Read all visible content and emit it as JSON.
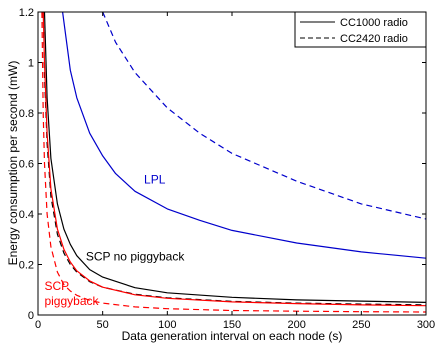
{
  "chart_data": {
    "type": "line",
    "title": "",
    "xlabel": "Data generation interval on each node (s)",
    "ylabel": "Energy consumption per second (mW)",
    "xlim": [
      0,
      300
    ],
    "ylim": [
      0,
      1.2
    ],
    "xticks": [
      0,
      50,
      100,
      150,
      200,
      250,
      300
    ],
    "yticks": [
      0,
      0.2,
      0.4,
      0.6,
      0.8,
      1,
      1.2
    ],
    "xtick_labels": [
      "0",
      "50",
      "100",
      "150",
      "200",
      "250",
      "300"
    ],
    "ytick_labels": [
      "0",
      "0.2",
      "0.4",
      "0.6",
      "0.8",
      "1",
      "1.2"
    ],
    "grid": false,
    "legend_position": "top-right",
    "legend": [
      {
        "label": "CC1000 radio",
        "style": "solid"
      },
      {
        "label": "CC2420 radio",
        "style": "dashed"
      }
    ],
    "annotations": [
      {
        "text": "LPL",
        "x": 82,
        "y": 0.52,
        "color": "#0000cc"
      },
      {
        "text": "SCP no piggyback",
        "x": 37,
        "y": 0.215,
        "color": "#000000"
      },
      {
        "text": "SCP",
        "x": 5,
        "y": 0.1,
        "color": "#ff0000"
      },
      {
        "text": "piggyback",
        "x": 5,
        "y": 0.04,
        "color": "#ff0000"
      }
    ],
    "series": [
      {
        "radio": "CC1000",
        "group": "LPL",
        "color": "#0000cc",
        "style": "solid",
        "x": [
          19,
          25,
          30,
          40,
          50,
          60,
          75,
          100,
          125,
          150,
          200,
          250,
          300
        ],
        "y": [
          1.2,
          0.97,
          0.86,
          0.72,
          0.63,
          0.56,
          0.49,
          0.42,
          0.375,
          0.335,
          0.285,
          0.25,
          0.225
        ]
      },
      {
        "radio": "CC2420",
        "group": "LPL",
        "color": "#0000cc",
        "style": "dashed",
        "x": [
          50,
          60,
          75,
          100,
          125,
          150,
          200,
          250,
          300
        ],
        "y": [
          1.2,
          1.08,
          0.96,
          0.82,
          0.72,
          0.64,
          0.53,
          0.44,
          0.38
        ]
      },
      {
        "radio": "CC1000",
        "group": "SCP no piggyback",
        "color": "#000000",
        "style": "solid",
        "x": [
          5,
          7,
          10,
          15,
          20,
          25,
          30,
          40,
          50,
          75,
          100,
          150,
          200,
          250,
          300
        ],
        "y": [
          1.2,
          0.86,
          0.62,
          0.44,
          0.34,
          0.28,
          0.235,
          0.18,
          0.15,
          0.108,
          0.088,
          0.07,
          0.06,
          0.055,
          0.05
        ]
      },
      {
        "radio": "CC2420",
        "group": "SCP no piggyback",
        "color": "#000000",
        "style": "dashed",
        "x": [
          4,
          5,
          7,
          10,
          15,
          20,
          25,
          30,
          40,
          50,
          75,
          100,
          150,
          200,
          250,
          300
        ],
        "y": [
          1.2,
          0.95,
          0.68,
          0.47,
          0.32,
          0.245,
          0.2,
          0.17,
          0.132,
          0.11,
          0.082,
          0.068,
          0.054,
          0.047,
          0.043,
          0.04
        ]
      },
      {
        "radio": "CC1000",
        "group": "SCP piggyback",
        "color": "#ff0000",
        "style": "solid",
        "x": [
          4,
          5,
          7,
          10,
          15,
          20,
          25,
          30,
          40,
          50,
          75,
          100,
          150,
          200,
          250,
          300
        ],
        "y": [
          1.2,
          1.0,
          0.72,
          0.5,
          0.34,
          0.26,
          0.21,
          0.175,
          0.135,
          0.11,
          0.08,
          0.066,
          0.052,
          0.045,
          0.04,
          0.037
        ]
      },
      {
        "radio": "CC2420",
        "group": "SCP piggyback",
        "color": "#ff0000",
        "style": "dashed",
        "x": [
          3,
          4,
          5,
          7,
          10,
          15,
          20,
          25,
          30,
          40,
          50,
          75,
          100,
          150,
          200,
          250,
          300
        ],
        "y": [
          1.2,
          0.8,
          0.6,
          0.4,
          0.27,
          0.17,
          0.12,
          0.095,
          0.078,
          0.058,
          0.047,
          0.032,
          0.025,
          0.018,
          0.015,
          0.013,
          0.012
        ]
      }
    ]
  }
}
